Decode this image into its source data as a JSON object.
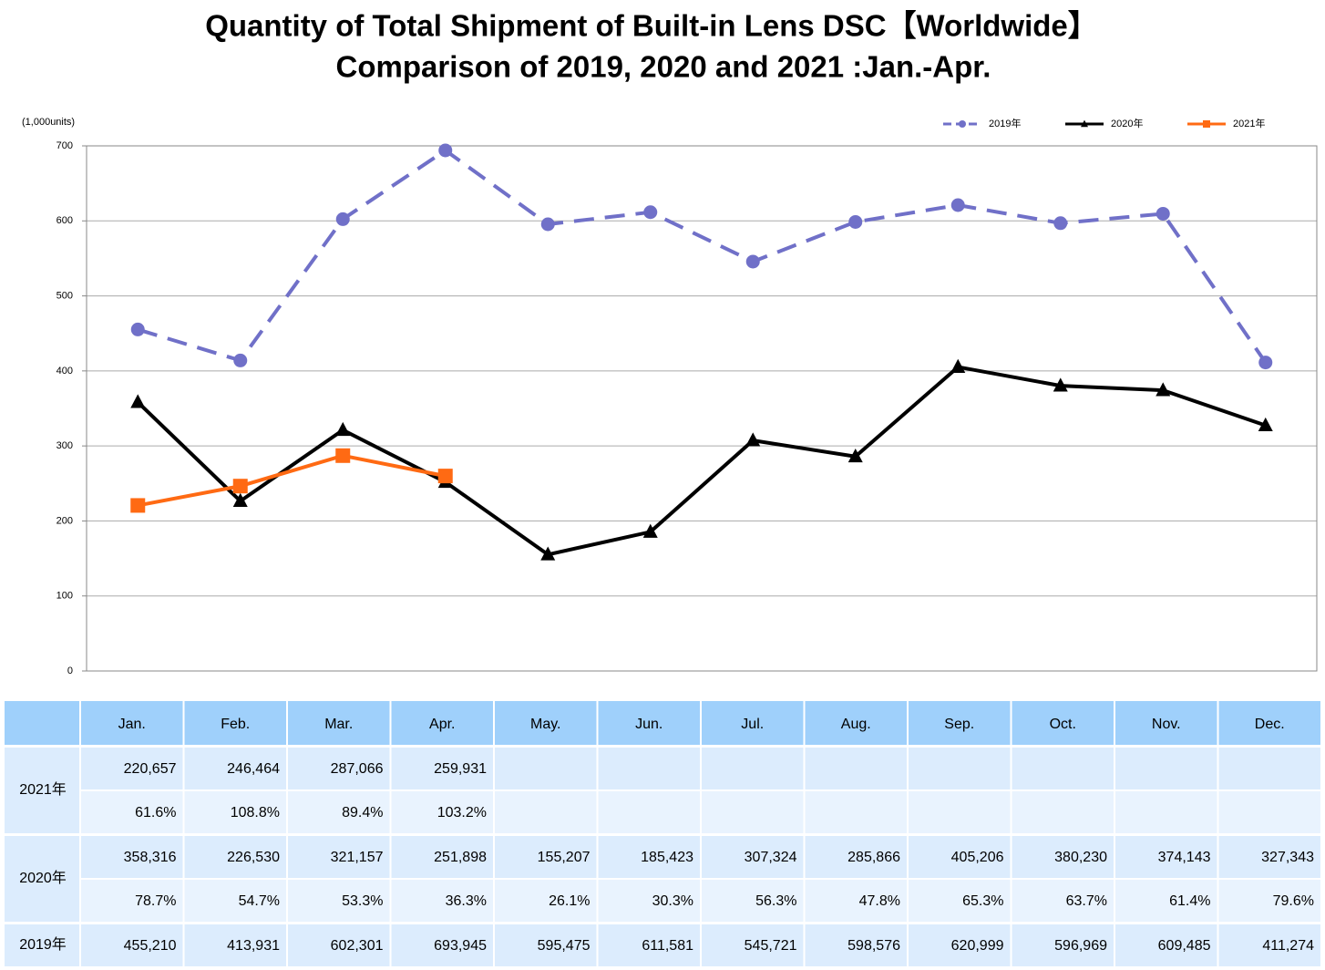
{
  "chart_data": {
    "type": "line",
    "title": "Quantity of Total Shipment of Built-in Lens DSC【Worldwide】",
    "subtitle": "Comparison of 2019, 2020 and 2021 :Jan.-Apr.",
    "y_label": "(1,000units)",
    "categories": [
      "Jan.",
      "Feb.",
      "Mar.",
      "Apr.",
      "May.",
      "Jun.",
      "Jul.",
      "Aug.",
      "Sep.",
      "Oct.",
      "Nov.",
      "Dec."
    ],
    "ylim": [
      0,
      700
    ],
    "yticks": [
      0,
      100,
      200,
      300,
      400,
      500,
      600,
      700
    ],
    "grid": true,
    "legend": "top-right",
    "series": [
      {
        "name": "2019年",
        "color": "#7070c8",
        "dash": true,
        "marker": "circle",
        "values": [
          455.21,
          413.931,
          602.301,
          693.945,
          595.475,
          611.581,
          545.721,
          598.576,
          620.999,
          596.969,
          609.485,
          411.274
        ],
        "value_labels": [
          "455,210",
          "413,931",
          "602,301",
          "693,945",
          "595,475",
          "611,581",
          "545,721",
          "598,576",
          "620,999",
          "596,969",
          "609,485",
          "411,274"
        ]
      },
      {
        "name": "2020年",
        "color": "#000000",
        "dash": false,
        "marker": "triangle",
        "values": [
          358.316,
          226.53,
          321.157,
          251.898,
          155.207,
          185.423,
          307.324,
          285.866,
          405.206,
          380.23,
          374.143,
          327.343
        ],
        "value_labels": [
          "358,316",
          "226,530",
          "321,157",
          "251,898",
          "155,207",
          "185,423",
          "307,324",
          "285,866",
          "405,206",
          "380,230",
          "374,143",
          "327,343"
        ],
        "ratio_labels": [
          "78.7%",
          "54.7%",
          "53.3%",
          "36.3%",
          "26.1%",
          "30.3%",
          "56.3%",
          "47.8%",
          "65.3%",
          "63.7%",
          "61.4%",
          "79.6%"
        ]
      },
      {
        "name": "2021年",
        "color": "#ff6a13",
        "dash": false,
        "marker": "square",
        "values": [
          220.657,
          246.464,
          287.066,
          259.931,
          null,
          null,
          null,
          null,
          null,
          null,
          null,
          null
        ],
        "value_labels": [
          "220,657",
          "246,464",
          "287,066",
          "259,931",
          null,
          null,
          null,
          null,
          null,
          null,
          null,
          null
        ],
        "ratio_labels": [
          "61.6%",
          "108.8%",
          "89.4%",
          "103.2%",
          null,
          null,
          null,
          null,
          null,
          null,
          null,
          null
        ]
      }
    ]
  }
}
